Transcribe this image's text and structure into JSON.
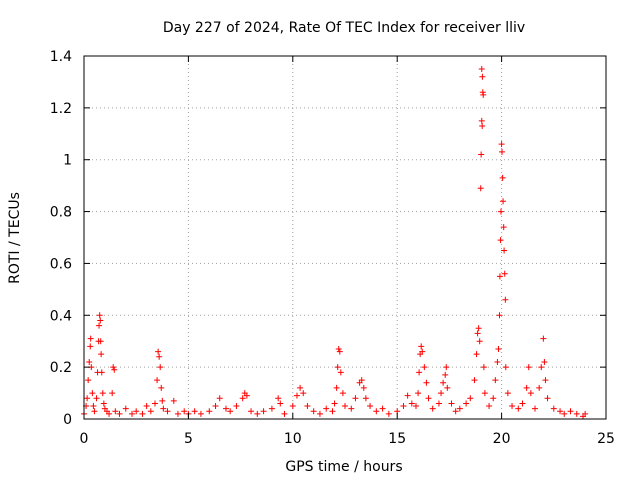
{
  "chart_data": {
    "type": "scatter",
    "title": "Day 227 of 2024, Rate Of TEC Index for receiver lliv",
    "xlabel": "GPS time / hours",
    "ylabel": "ROTI / TECUs",
    "xlim": [
      0,
      25
    ],
    "ylim": [
      0,
      1.4
    ],
    "xticks": [
      0,
      5,
      10,
      15,
      20,
      25
    ],
    "xtick_labels": [
      "0",
      "5",
      "10",
      "15",
      "20",
      "25"
    ],
    "yticks": [
      0,
      0.2,
      0.4,
      0.6,
      0.8,
      1,
      1.2,
      1.4
    ],
    "ytick_labels": [
      "0",
      "0.2",
      "0.4",
      "0.6",
      "0.8",
      "1",
      "1.2",
      "1.4"
    ],
    "grid": true,
    "marker": "plus",
    "color": "#ff0000",
    "series": [
      {
        "name": "ROTI",
        "points": [
          [
            0.0,
            0.02
          ],
          [
            0.1,
            0.05
          ],
          [
            0.15,
            0.08
          ],
          [
            0.2,
            0.15
          ],
          [
            0.25,
            0.22
          ],
          [
            0.3,
            0.28
          ],
          [
            0.32,
            0.31
          ],
          [
            0.35,
            0.2
          ],
          [
            0.4,
            0.1
          ],
          [
            0.45,
            0.05
          ],
          [
            0.5,
            0.03
          ],
          [
            0.6,
            0.08
          ],
          [
            0.65,
            0.18
          ],
          [
            0.7,
            0.3
          ],
          [
            0.72,
            0.36
          ],
          [
            0.75,
            0.4
          ],
          [
            0.78,
            0.38
          ],
          [
            0.8,
            0.3
          ],
          [
            0.82,
            0.25
          ],
          [
            0.85,
            0.18
          ],
          [
            0.9,
            0.1
          ],
          [
            0.95,
            0.06
          ],
          [
            1.0,
            0.04
          ],
          [
            1.1,
            0.03
          ],
          [
            1.2,
            0.02
          ],
          [
            1.35,
            0.1
          ],
          [
            1.4,
            0.2
          ],
          [
            1.45,
            0.19
          ],
          [
            1.5,
            0.03
          ],
          [
            1.7,
            0.02
          ],
          [
            2.0,
            0.04
          ],
          [
            2.3,
            0.02
          ],
          [
            2.5,
            0.03
          ],
          [
            2.8,
            0.02
          ],
          [
            3.0,
            0.05
          ],
          [
            3.2,
            0.03
          ],
          [
            3.4,
            0.06
          ],
          [
            3.5,
            0.15
          ],
          [
            3.55,
            0.26
          ],
          [
            3.6,
            0.24
          ],
          [
            3.65,
            0.2
          ],
          [
            3.7,
            0.12
          ],
          [
            3.75,
            0.07
          ],
          [
            3.8,
            0.04
          ],
          [
            4.0,
            0.03
          ],
          [
            4.3,
            0.07
          ],
          [
            4.5,
            0.02
          ],
          [
            4.8,
            0.03
          ],
          [
            5.0,
            0.02
          ],
          [
            5.3,
            0.03
          ],
          [
            5.6,
            0.02
          ],
          [
            6.0,
            0.03
          ],
          [
            6.3,
            0.05
          ],
          [
            6.5,
            0.08
          ],
          [
            6.8,
            0.04
          ],
          [
            7.0,
            0.03
          ],
          [
            7.3,
            0.05
          ],
          [
            7.6,
            0.08
          ],
          [
            7.7,
            0.1
          ],
          [
            7.8,
            0.09
          ],
          [
            8.0,
            0.03
          ],
          [
            8.3,
            0.02
          ],
          [
            8.6,
            0.03
          ],
          [
            9.0,
            0.04
          ],
          [
            9.3,
            0.08
          ],
          [
            9.4,
            0.06
          ],
          [
            9.6,
            0.02
          ],
          [
            10.0,
            0.05
          ],
          [
            10.2,
            0.09
          ],
          [
            10.35,
            0.12
          ],
          [
            10.5,
            0.1
          ],
          [
            10.7,
            0.05
          ],
          [
            11.0,
            0.03
          ],
          [
            11.3,
            0.02
          ],
          [
            11.6,
            0.04
          ],
          [
            11.9,
            0.03
          ],
          [
            12.0,
            0.06
          ],
          [
            12.1,
            0.12
          ],
          [
            12.15,
            0.2
          ],
          [
            12.2,
            0.27
          ],
          [
            12.25,
            0.26
          ],
          [
            12.3,
            0.18
          ],
          [
            12.4,
            0.1
          ],
          [
            12.5,
            0.05
          ],
          [
            12.8,
            0.04
          ],
          [
            13.0,
            0.08
          ],
          [
            13.2,
            0.14
          ],
          [
            13.3,
            0.15
          ],
          [
            13.4,
            0.12
          ],
          [
            13.5,
            0.08
          ],
          [
            13.7,
            0.05
          ],
          [
            14.0,
            0.03
          ],
          [
            14.3,
            0.04
          ],
          [
            14.6,
            0.02
          ],
          [
            15.0,
            0.03
          ],
          [
            15.3,
            0.05
          ],
          [
            15.5,
            0.09
          ],
          [
            15.7,
            0.06
          ],
          [
            15.9,
            0.05
          ],
          [
            16.0,
            0.1
          ],
          [
            16.05,
            0.18
          ],
          [
            16.1,
            0.25
          ],
          [
            16.15,
            0.28
          ],
          [
            16.2,
            0.26
          ],
          [
            16.3,
            0.2
          ],
          [
            16.4,
            0.14
          ],
          [
            16.5,
            0.08
          ],
          [
            16.7,
            0.04
          ],
          [
            17.0,
            0.06
          ],
          [
            17.1,
            0.1
          ],
          [
            17.2,
            0.14
          ],
          [
            17.3,
            0.17
          ],
          [
            17.35,
            0.2
          ],
          [
            17.4,
            0.12
          ],
          [
            17.6,
            0.06
          ],
          [
            17.8,
            0.03
          ],
          [
            18.0,
            0.04
          ],
          [
            18.3,
            0.06
          ],
          [
            18.5,
            0.08
          ],
          [
            18.7,
            0.15
          ],
          [
            18.8,
            0.25
          ],
          [
            18.85,
            0.33
          ],
          [
            18.9,
            0.35
          ],
          [
            18.95,
            0.3
          ],
          [
            19.0,
            0.89
          ],
          [
            19.02,
            1.02
          ],
          [
            19.05,
            1.15
          ],
          [
            19.07,
            1.13
          ],
          [
            19.1,
            1.26
          ],
          [
            19.12,
            1.25
          ],
          [
            19.05,
            1.35
          ],
          [
            19.08,
            1.32
          ],
          [
            19.15,
            0.2
          ],
          [
            19.2,
            0.1
          ],
          [
            19.4,
            0.05
          ],
          [
            19.6,
            0.08
          ],
          [
            19.7,
            0.15
          ],
          [
            19.8,
            0.22
          ],
          [
            19.85,
            0.27
          ],
          [
            19.9,
            0.4
          ],
          [
            19.92,
            0.55
          ],
          [
            19.95,
            0.69
          ],
          [
            19.97,
            0.8
          ],
          [
            20.0,
            1.06
          ],
          [
            20.02,
            1.03
          ],
          [
            20.05,
            0.93
          ],
          [
            20.07,
            0.84
          ],
          [
            20.1,
            0.74
          ],
          [
            20.12,
            0.65
          ],
          [
            20.15,
            0.56
          ],
          [
            20.18,
            0.46
          ],
          [
            20.2,
            0.2
          ],
          [
            20.3,
            0.1
          ],
          [
            20.5,
            0.05
          ],
          [
            20.8,
            0.04
          ],
          [
            21.0,
            0.06
          ],
          [
            21.2,
            0.12
          ],
          [
            21.3,
            0.2
          ],
          [
            21.4,
            0.1
          ],
          [
            21.6,
            0.04
          ],
          [
            21.8,
            0.12
          ],
          [
            21.9,
            0.2
          ],
          [
            22.0,
            0.31
          ],
          [
            22.05,
            0.22
          ],
          [
            22.1,
            0.15
          ],
          [
            22.2,
            0.08
          ],
          [
            22.5,
            0.04
          ],
          [
            22.8,
            0.03
          ],
          [
            23.0,
            0.02
          ],
          [
            23.3,
            0.03
          ],
          [
            23.6,
            0.02
          ],
          [
            23.9,
            0.01
          ],
          [
            24.0,
            0.02
          ]
        ]
      }
    ]
  }
}
